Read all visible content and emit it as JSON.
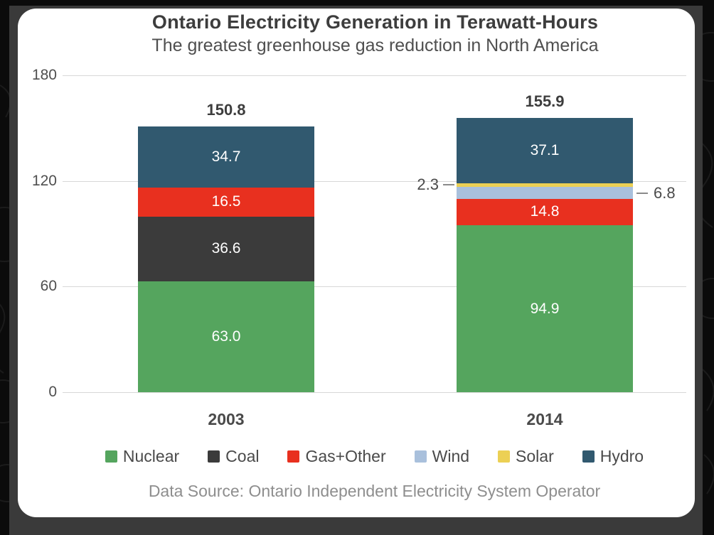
{
  "chart_data": {
    "type": "bar",
    "stacked": true,
    "title": "Ontario Electricity Generation in Terawatt-Hours",
    "subtitle": "The greatest greenhouse gas reduction in North America",
    "source": "Data Source: Ontario Independent Electricity System Operator",
    "categories": [
      "2003",
      "2014"
    ],
    "series": [
      {
        "name": "Nuclear",
        "color": "#55a55e",
        "values": [
          63.0,
          94.9
        ]
      },
      {
        "name": "Coal",
        "color": "#3b3b3b",
        "values": [
          36.6,
          0
        ]
      },
      {
        "name": "Gas+Other",
        "color": "#e8301f",
        "values": [
          16.5,
          14.8
        ]
      },
      {
        "name": "Wind",
        "color": "#a9c0dc",
        "values": [
          0,
          6.8
        ]
      },
      {
        "name": "Solar",
        "color": "#ecd054",
        "values": [
          0,
          2.3
        ]
      },
      {
        "name": "Hydro",
        "color": "#31596f",
        "values": [
          34.7,
          37.1
        ]
      }
    ],
    "totals": [
      "150.8",
      "155.9"
    ],
    "yticks": [
      0,
      60,
      120,
      180
    ],
    "ylim": [
      0,
      180
    ],
    "grid": true,
    "legend_position": "bottom",
    "callouts": [
      {
        "category": "2014",
        "series": "Solar",
        "label": "2.3",
        "side": "left"
      },
      {
        "category": "2014",
        "series": "Wind",
        "label": "6.8",
        "side": "right"
      }
    ]
  }
}
